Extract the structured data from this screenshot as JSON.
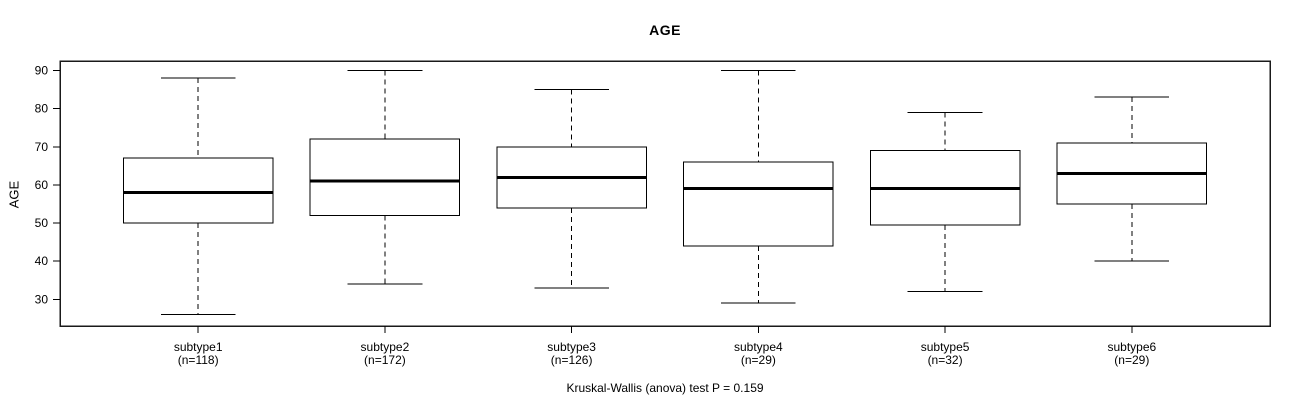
{
  "figure": {
    "title": "AGE",
    "y_axis_label": "AGE",
    "caption": "Kruskal-Wallis (anova) test P = 0.159"
  },
  "chart_data": {
    "type": "boxplot",
    "title": "AGE",
    "xlabel": "",
    "ylabel": "AGE",
    "ylim": [
      23,
      92.5
    ],
    "yticks": [
      30,
      40,
      50,
      60,
      70,
      80,
      90
    ],
    "grid": false,
    "legend": "none",
    "annotation": "Kruskal-Wallis (anova) test P = 0.159",
    "categories": [
      "subtype1",
      "subtype2",
      "subtype3",
      "subtype4",
      "subtype5",
      "subtype6"
    ],
    "groups": [
      {
        "label": "subtype1",
        "count_label": "(n=118)",
        "n": 118,
        "lower_whisker": 26,
        "q1": 50,
        "median": 58,
        "q3": 67,
        "upper_whisker": 88
      },
      {
        "label": "subtype2",
        "count_label": "(n=172)",
        "n": 172,
        "lower_whisker": 34,
        "q1": 52,
        "median": 61,
        "q3": 72,
        "upper_whisker": 90
      },
      {
        "label": "subtype3",
        "count_label": "(n=126)",
        "n": 126,
        "lower_whisker": 33,
        "q1": 54,
        "median": 62,
        "q3": 70,
        "upper_whisker": 85
      },
      {
        "label": "subtype4",
        "count_label": "(n=29)",
        "n": 29,
        "lower_whisker": 29,
        "q1": 44,
        "median": 59,
        "q3": 66,
        "upper_whisker": 90
      },
      {
        "label": "subtype5",
        "count_label": "(n=32)",
        "n": 32,
        "lower_whisker": 32,
        "q1": 49.5,
        "median": 59,
        "q3": 69,
        "upper_whisker": 79
      },
      {
        "label": "subtype6",
        "count_label": "(n=29)",
        "n": 29,
        "lower_whisker": 40,
        "q1": 55,
        "median": 63,
        "q3": 71,
        "upper_whisker": 83
      }
    ]
  },
  "colors": {
    "stroke": "#000000",
    "median": "#000000",
    "frame": "#1a1a1a",
    "background": "#ffffff",
    "text": "#000000"
  }
}
